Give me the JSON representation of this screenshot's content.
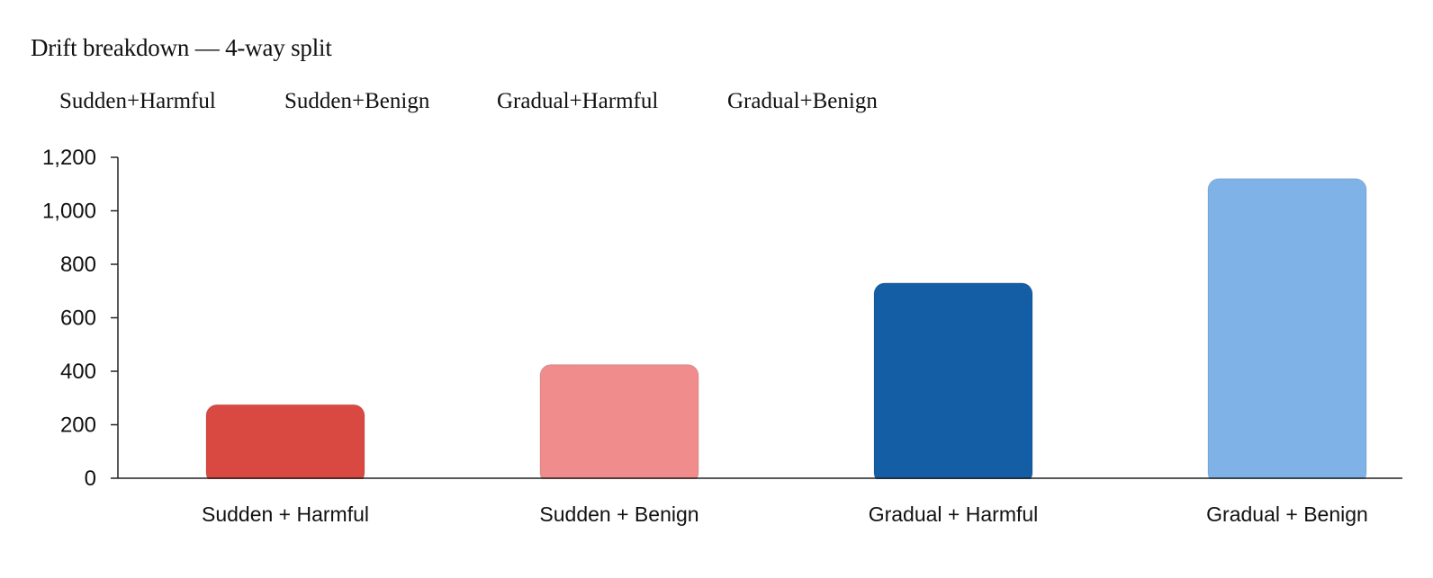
{
  "chart_data": {
    "type": "bar",
    "title": "Drift breakdown — 4-way split",
    "legend": {
      "placement": "top-left",
      "entries": [
        "Sudden+Harmful",
        "Sudden+Benign",
        "Gradual+Harmful",
        "Gradual+Benign"
      ]
    },
    "categories": [
      "Sudden + Harmful",
      "Sudden + Benign",
      "Gradual + Harmful",
      "Gradual + Benign"
    ],
    "values": [
      275,
      425,
      730,
      1120
    ],
    "colors": [
      "#d94841",
      "#f08c8c",
      "#135ea5",
      "#7fb2e6"
    ],
    "xlabel": "",
    "ylabel": "",
    "ylim": [
      0,
      1200
    ],
    "yticks": [
      "0",
      "200",
      "400",
      "600",
      "800",
      "1,000",
      "1,200"
    ],
    "ytick_values": [
      0,
      200,
      400,
      600,
      800,
      1000,
      1200
    ],
    "grid": false
  }
}
